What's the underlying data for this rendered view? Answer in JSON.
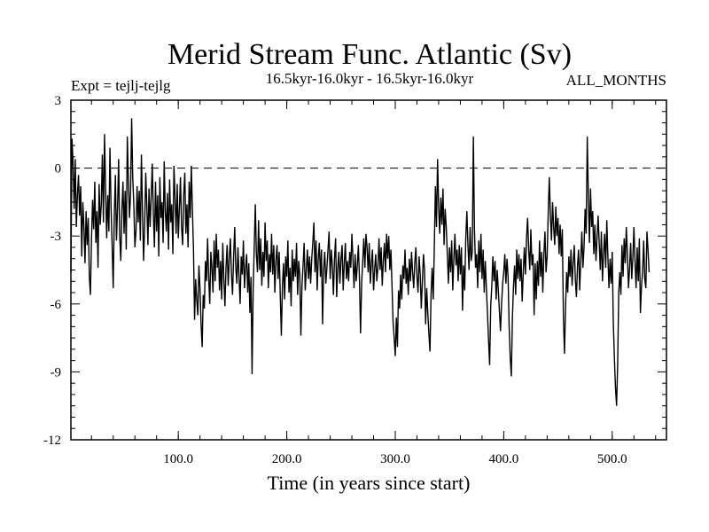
{
  "chart_data": {
    "type": "line",
    "title": "Merid Stream Func. Atlantic (Sv)",
    "subtitle": "16.5kyr-16.0kyr - 16.5kyr-16.0kyr",
    "left_label": "Expt = tejlj-tejlg",
    "right_label": "ALL_MONTHS",
    "xlabel": "Time (in years since start)",
    "ylabel": "",
    "xlim": [
      1,
      550
    ],
    "ylim": [
      -12,
      3
    ],
    "xticks": [
      100,
      200,
      300,
      400,
      500
    ],
    "xtick_labels": [
      "100.0",
      "200.0",
      "300.0",
      "400.0",
      "500.0"
    ],
    "yticks": [
      3,
      0,
      -3,
      -6,
      -9,
      -12
    ],
    "ytick_labels": [
      "3",
      "0",
      "-3",
      "-6",
      "-9",
      "-12"
    ],
    "reference_line": {
      "y": 0,
      "style": "dashed"
    },
    "series": [
      {
        "name": "Merid Stream Func. Atlantic",
        "x_start": 1,
        "x_step": 1,
        "values": [
          -4.6,
          1.3,
          0.2,
          -1.8,
          0.4,
          -2.6,
          -1.2,
          -0.3,
          -2.1,
          -0.8,
          -3.9,
          -1.5,
          -2.6,
          -4.2,
          -1.9,
          -3.4,
          -2.2,
          -4.8,
          -5.6,
          -3.1,
          -1.4,
          -2.7,
          -0.6,
          -3.3,
          -1.9,
          -4.4,
          -0.7,
          -2.5,
          -1.6,
          0.6,
          -2.4,
          1.5,
          -0.9,
          -3.1,
          -1.2,
          -2.8,
          0.9,
          -1.7,
          -3.4,
          -5.3,
          -2.1,
          -0.3,
          -3.2,
          -1.8,
          0.4,
          -3.0,
          -4.1,
          -1.9,
          -0.6,
          -2.9,
          -1.0,
          -3.6,
          1.4,
          -0.5,
          -2.2,
          -1.1,
          2.2,
          -0.4,
          -1.6,
          -3.5,
          -2.8,
          -0.8,
          -2.4,
          -1.0,
          -3.2,
          0.6,
          -1.9,
          -4.1,
          -2.5,
          -0.2,
          -1.7,
          -3.4,
          -0.9,
          -2.6,
          -1.3,
          0.2,
          -2.0,
          -3.5,
          -0.6,
          -2.8,
          -1.2,
          -3.9,
          -0.4,
          -2.2,
          -1.5,
          -3.3,
          0.3,
          -1.9,
          -2.8,
          -1.1,
          -3.6,
          -0.5,
          -2.4,
          -1.6,
          -3.8,
          0.1,
          -1.3,
          -2.9,
          -0.7,
          -3.1,
          -1.8,
          -0.4,
          -2.6,
          -3.4,
          -1.2,
          -0.2,
          -2.9,
          -1.6,
          -3.5,
          -0.6,
          -2.2,
          0.1,
          -1.8,
          -3.6,
          -6.7,
          -4.9,
          -5.8,
          -6.5,
          -4.3,
          -5.3,
          -6.9,
          -7.9,
          -5.6,
          -6.2,
          -4.1,
          -5.0,
          -3.1,
          -4.8,
          -6.0,
          -3.7,
          -4.4,
          -5.5,
          -3.2,
          -5.0,
          -2.9,
          -4.4,
          -3.6,
          -5.4,
          -4.1,
          -5.8,
          -3.3,
          -4.9,
          -6.1,
          -4.4,
          -3.4,
          -5.2,
          -4.0,
          -3.1,
          -4.7,
          -5.6,
          -3.9,
          -2.6,
          -4.4,
          -5.1,
          -3.5,
          -4.8,
          -6.0,
          -3.9,
          -4.7,
          -3.2,
          -5.3,
          -4.4,
          -3.8,
          -5.5,
          -4.2,
          -6.4,
          -4.8,
          -9.1,
          -5.4,
          -3.5,
          -1.6,
          -3.8,
          -4.6,
          -2.3,
          -4.5,
          -3.1,
          -5.2,
          -3.7,
          -4.8,
          -2.4,
          -4.1,
          -3.2,
          -5.3,
          -3.8,
          -4.6,
          -2.9,
          -4.7,
          -3.4,
          -5.5,
          -4.1,
          -3.4,
          -4.9,
          -3.7,
          -5.6,
          -7.4,
          -5.2,
          -4.2,
          -5.8,
          -3.9,
          -4.8,
          -3.2,
          -5.5,
          -4.4,
          -6.1,
          -3.6,
          -5.0,
          -4.0,
          -4.8,
          -3.3,
          -5.6,
          -4.1,
          -4.7,
          -7.4,
          -5.2,
          -4.3,
          -3.3,
          -5.4,
          -4.5,
          -3.6,
          -4.9,
          -3.9,
          -5.1,
          -4.0,
          -3.3,
          -2.4,
          -4.6,
          -3.2,
          -5.4,
          -4.0,
          -3.3,
          -4.8,
          -3.6,
          -6.9,
          -4.5,
          -3.7,
          -5.1,
          -4.4,
          -3.6,
          -2.8,
          -4.9,
          -3.6,
          -4.3,
          -5.6,
          -4.0,
          -3.1,
          -5.7,
          -4.4,
          -3.7,
          -5.1,
          -4.0,
          -3.4,
          -5.4,
          -4.2,
          -3.3,
          -4.9,
          -4.1,
          -5.0,
          -3.7,
          -4.4,
          -2.9,
          -4.0,
          -5.3,
          -3.8,
          -5.0,
          -4.3,
          -3.4,
          -4.9,
          -7.3,
          -5.1,
          -4.1,
          -3.1,
          -4.4,
          -2.9,
          -3.5,
          -4.6,
          -3.3,
          -5.1,
          -4.2,
          -3.6,
          -5.4,
          -4.5,
          -3.8,
          -5.0,
          -4.4,
          -3.1,
          -4.5,
          -3.5,
          -5.2,
          -4.1,
          -3.3,
          -4.6,
          -2.9,
          -4.0,
          -3.0,
          -4.5,
          -3.6,
          -5.2,
          -6.8,
          -7.5,
          -8.3,
          -6.6,
          -7.9,
          -5.4,
          -6.2,
          -4.7,
          -5.8,
          -4.3,
          -4.9,
          -3.6,
          -5.1,
          -4.4,
          -5.6,
          -4.0,
          -5.0,
          -3.7,
          -4.6,
          -5.3,
          -4.2,
          -3.5,
          -4.8,
          -5.5,
          -3.9,
          -4.7,
          -6.2,
          -5.0,
          -3.8,
          -4.5,
          -6.9,
          -5.3,
          -6.4,
          -7.3,
          -8.1,
          -5.6,
          -4.4,
          -5.8,
          -3.5,
          -0.8,
          -2.6,
          0.4,
          -1.7,
          -2.9,
          -1.3,
          -2.5,
          -0.9,
          -3.4,
          -1.8,
          -2.6,
          -3.8,
          -5.1,
          -3.5,
          -4.6,
          -3.2,
          -5.4,
          -4.0,
          -2.9,
          -4.3,
          -3.6,
          -5.0,
          -3.4,
          -4.7,
          -3.5,
          -6.3,
          -4.3,
          -5.4,
          -3.1,
          -1.9,
          -3.4,
          -4.5,
          -2.6,
          -4.1,
          -3.7,
          1.4,
          -2.7,
          -4.4,
          -3.8,
          -5.3,
          -3.2,
          -4.6,
          -2.9,
          -4.9,
          -3.6,
          -5.5,
          -4.1,
          -5.3,
          -6.4,
          -7.6,
          -8.7,
          -6.1,
          -5.2,
          -3.9,
          -5.0,
          -4.1,
          -5.8,
          -4.5,
          -5.4,
          -6.3,
          -7.2,
          -6.0,
          -5.1,
          -4.6,
          -3.8,
          -5.1,
          -4.0,
          -4.8,
          -7.0,
          -8.4,
          -9.2,
          -6.6,
          -5.2,
          -4.3,
          -5.6,
          -3.6,
          -4.9,
          -3.8,
          -5.0,
          -4.0,
          -5.9,
          -4.6,
          -3.5,
          -4.7,
          -3.1,
          -2.2,
          -3.6,
          -4.5,
          -2.7,
          -4.3,
          -3.8,
          -6.5,
          -4.2,
          -5.8,
          -4.1,
          -5.2,
          -3.2,
          -4.8,
          -3.7,
          -5.5,
          -3.8,
          -2.8,
          -4.6,
          -3.9,
          -2.0,
          -0.4,
          -2.1,
          -3.2,
          -1.5,
          -2.6,
          -3.4,
          -1.7,
          -3.0,
          -2.2,
          -3.8,
          -2.5,
          -3.9,
          -2.7,
          -6.6,
          -8.2,
          -6.1,
          -4.6,
          -5.5,
          -3.9,
          -4.8,
          -3.6,
          -5.2,
          -4.2,
          -3.4,
          -4.9,
          -5.7,
          -4.3,
          -3.6,
          -5.4,
          -4.1,
          -2.8,
          -4.4,
          -3.5,
          -1.8,
          -2.9,
          1.4,
          -1.2,
          -3.3,
          -0.9,
          -2.6,
          -1.9,
          -3.8,
          -2.5,
          -4.1,
          -3.1,
          -2.1,
          -3.3,
          -4.5,
          -2.8,
          -5.0,
          -3.8,
          -2.9,
          -4.4,
          -2.3,
          -3.9,
          -5.3,
          -4.0,
          -5.1,
          -3.7,
          -6.8,
          -8.4,
          -9.7,
          -10.5,
          -8.7,
          -5.5,
          -4.6,
          -5.6,
          -3.4,
          -4.8,
          -3.1,
          -4.2,
          -2.6,
          -3.8,
          -5.3,
          -4.4,
          -3.3,
          -4.9,
          -4.0,
          -2.6,
          -4.1,
          -5.3,
          -3.5,
          -5.0,
          -3.1,
          -6.4,
          -5.2,
          -4.6,
          -3.2,
          -4.9,
          -5.3,
          -2.8,
          -3.6,
          -4.6
        ]
      }
    ]
  }
}
